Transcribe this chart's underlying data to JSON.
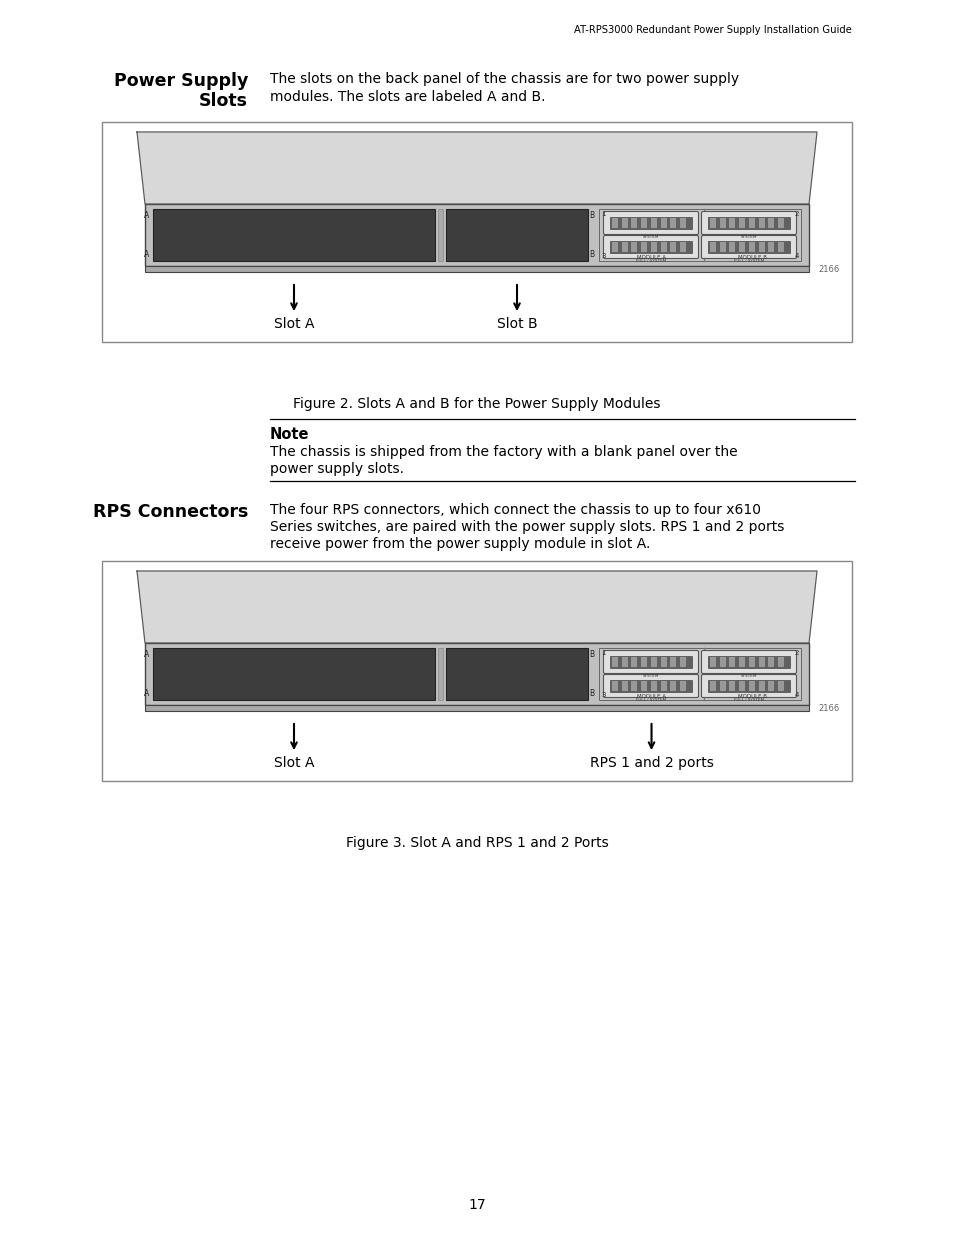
{
  "page_header": "AT-RPS3000 Redundant Power Supply Installation Guide",
  "page_number": "17",
  "figure1_caption": "Figure 2. Slots A and B for the Power Supply Modules",
  "figure2_caption": "Figure 3. Slot A and RPS 1 and 2 Ports",
  "note_title": "Note",
  "note_body1": "The chassis is shipped from the factory with a blank panel over the",
  "note_body2": "power supply slots.",
  "sec1_title1": "Power Supply",
  "sec1_title2": "Slots",
  "sec1_body1": "The slots on the back panel of the chassis are for two power supply",
  "sec1_body2": "modules. The slots are labeled A and B.",
  "sec2_title": "RPS Connectors",
  "sec2_body1": "The four RPS connectors, which connect the chassis to up to four x610",
  "sec2_body2": "Series switches, are paired with the power supply slots. RPS 1 and 2 ports",
  "sec2_body3": "receive power from the power supply module in slot A.",
  "fig1_lbl_left": "Slot A",
  "fig1_lbl_right": "Slot B",
  "fig2_lbl_left": "Slot A",
  "fig2_lbl_right": "RPS 1 and 2 ports",
  "bg": "#ffffff",
  "fg": "#000000"
}
